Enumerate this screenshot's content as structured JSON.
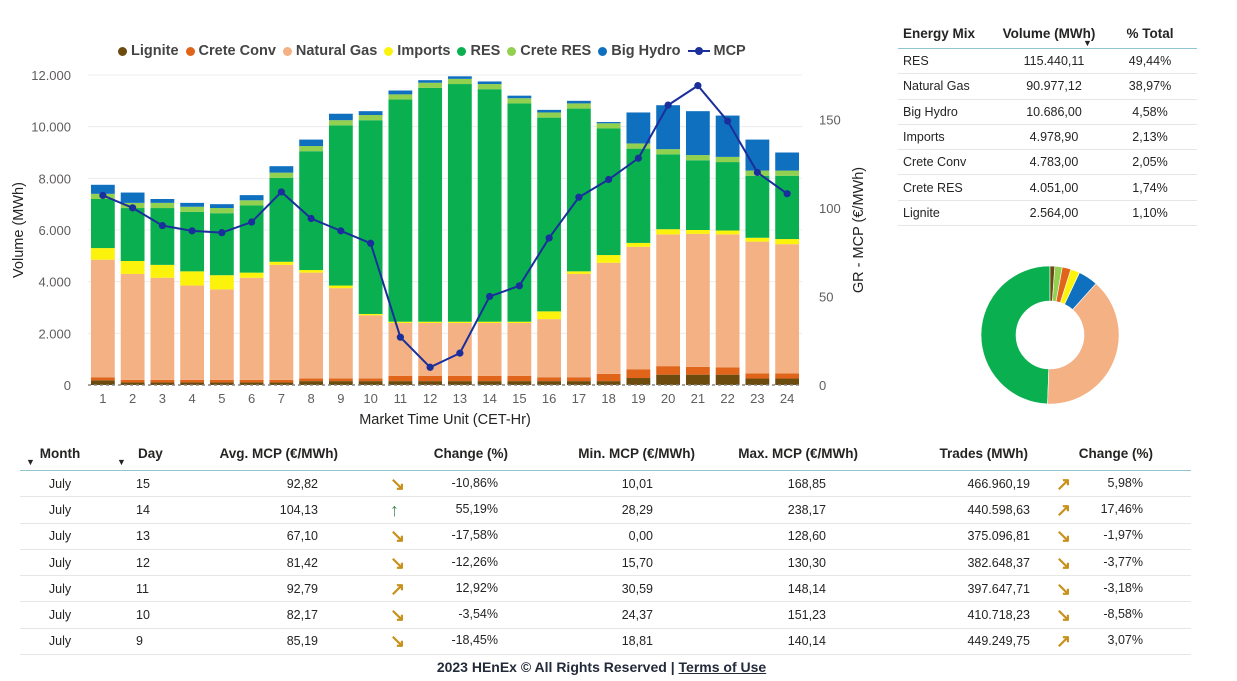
{
  "chart_data": {
    "type": "bar",
    "stacked": true,
    "xlabel": "Market Time Unit (CET-Hr)",
    "ylabel": "Volume (MWh)",
    "y2label": "GR - MCP (€/MWh)",
    "ylim": [
      0,
      12000
    ],
    "y2lim": [
      0,
      175
    ],
    "ticks_left": [
      "0",
      "2.000",
      "4.000",
      "6.000",
      "8.000",
      "10.000",
      "12.000"
    ],
    "ticks_right": [
      "0",
      "50",
      "100",
      "150"
    ],
    "categories": [
      "1",
      "2",
      "3",
      "4",
      "5",
      "6",
      "7",
      "8",
      "9",
      "10",
      "11",
      "12",
      "13",
      "14",
      "15",
      "16",
      "17",
      "18",
      "19",
      "20",
      "21",
      "22",
      "23",
      "24"
    ],
    "series": [
      {
        "name": "Lignite",
        "color": "#6b4b0e",
        "values": [
          180,
          100,
          100,
          100,
          100,
          100,
          100,
          150,
          150,
          150,
          150,
          150,
          150,
          150,
          150,
          150,
          150,
          150,
          270,
          400,
          400,
          400,
          250,
          250
        ]
      },
      {
        "name": "Crete Conv",
        "color": "#e0641a",
        "values": [
          120,
          100,
          100,
          100,
          100,
          100,
          100,
          100,
          100,
          100,
          200,
          200,
          200,
          200,
          200,
          150,
          150,
          280,
          330,
          330,
          300,
          280,
          200,
          200
        ]
      },
      {
        "name": "Natural Gas",
        "color": "#f4b184",
        "values": [
          4550,
          4100,
          3950,
          3650,
          3500,
          3950,
          4450,
          4100,
          3500,
          2450,
          2050,
          2050,
          2050,
          2050,
          2050,
          2250,
          4000,
          4300,
          4750,
          5100,
          5150,
          5150,
          5100,
          5000
        ]
      },
      {
        "name": "Imports",
        "color": "#fcf30c",
        "values": [
          450,
          500,
          500,
          550,
          550,
          200,
          120,
          100,
          100,
          50,
          50,
          50,
          50,
          50,
          50,
          300,
          100,
          300,
          150,
          200,
          150,
          150,
          150,
          200
        ]
      },
      {
        "name": "RES",
        "color": "#0ab050",
        "values": [
          1900,
          2050,
          2200,
          2300,
          2400,
          2600,
          3250,
          4600,
          6200,
          7500,
          8600,
          9050,
          9200,
          9000,
          8450,
          7500,
          6300,
          4900,
          3650,
          2900,
          2700,
          2650,
          2400,
          2450
        ]
      },
      {
        "name": "Crete RES",
        "color": "#92d050",
        "values": [
          200,
          200,
          200,
          200,
          200,
          200,
          200,
          200,
          200,
          200,
          200,
          200,
          200,
          200,
          200,
          200,
          200,
          200,
          200,
          200,
          200,
          200,
          200,
          200
        ]
      },
      {
        "name": "Big Hydro",
        "color": "#1070c0",
        "values": [
          350,
          400,
          150,
          150,
          150,
          200,
          250,
          250,
          250,
          150,
          150,
          100,
          100,
          100,
          100,
          100,
          100,
          50,
          1200,
          1700,
          1700,
          1600,
          1200,
          700
        ]
      }
    ],
    "line_series": {
      "name": "MCP",
      "color": "#1a2f9c",
      "values": [
        107,
        100,
        90,
        87,
        86,
        92,
        109,
        94,
        87,
        80,
        27,
        10,
        18,
        50,
        56,
        83,
        106,
        116,
        128,
        158,
        169,
        149,
        120,
        108
      ]
    }
  },
  "energy_mix": {
    "headers": [
      "Energy Mix",
      "Volume (MWh)",
      "% Total"
    ],
    "rows": [
      {
        "name": "RES",
        "volume": "115.440,11",
        "pct": "49,44%"
      },
      {
        "name": "Natural Gas",
        "volume": "90.977,12",
        "pct": "38,97%"
      },
      {
        "name": "Big Hydro",
        "volume": "10.686,00",
        "pct": "4,58%"
      },
      {
        "name": "Imports",
        "volume": "4.978,90",
        "pct": "2,13%"
      },
      {
        "name": "Crete Conv",
        "volume": "4.783,00",
        "pct": "2,05%"
      },
      {
        "name": "Crete RES",
        "volume": "4.051,00",
        "pct": "1,74%"
      },
      {
        "name": "Lignite",
        "volume": "2.564,00",
        "pct": "1,10%"
      }
    ]
  },
  "donut": {
    "slices": [
      {
        "name": "RES",
        "value": 49.44,
        "color": "#0ab050"
      },
      {
        "name": "Natural Gas",
        "value": 38.97,
        "color": "#f4b184"
      },
      {
        "name": "Big Hydro",
        "value": 4.58,
        "color": "#1070c0"
      },
      {
        "name": "Imports",
        "value": 2.13,
        "color": "#fcf30c"
      },
      {
        "name": "Crete Conv",
        "value": 2.05,
        "color": "#e0641a"
      },
      {
        "name": "Crete RES",
        "value": 1.74,
        "color": "#92d050"
      },
      {
        "name": "Lignite",
        "value": 1.1,
        "color": "#6b4b0e"
      }
    ]
  },
  "market": {
    "headers": [
      "Month",
      "Day",
      "Avg. MCP (€/MWh)",
      "Change (%)",
      "Min. MCP (€/MWh)",
      "Max. MCP (€/MWh)",
      "Trades (MWh)",
      "Change (%)"
    ],
    "rows": [
      {
        "month": "July",
        "day": "15",
        "avg": "92,82",
        "avg_dir": "down",
        "change": "-10,86%",
        "min": "10,01",
        "max": "168,85",
        "trades": "466.960,19",
        "trades_dir": "up",
        "trades_change": "5,98%"
      },
      {
        "month": "July",
        "day": "14",
        "avg": "104,13",
        "avg_dir": "strong-up",
        "change": "55,19%",
        "min": "28,29",
        "max": "238,17",
        "trades": "440.598,63",
        "trades_dir": "up",
        "trades_change": "17,46%"
      },
      {
        "month": "July",
        "day": "13",
        "avg": "67,10",
        "avg_dir": "down",
        "change": "-17,58%",
        "min": "0,00",
        "max": "128,60",
        "trades": "375.096,81",
        "trades_dir": "down",
        "trades_change": "-1,97%"
      },
      {
        "month": "July",
        "day": "12",
        "avg": "81,42",
        "avg_dir": "down",
        "change": "-12,26%",
        "min": "15,70",
        "max": "130,30",
        "trades": "382.648,37",
        "trades_dir": "down",
        "trades_change": "-3,77%"
      },
      {
        "month": "July",
        "day": "11",
        "avg": "92,79",
        "avg_dir": "up",
        "change": "12,92%",
        "min": "30,59",
        "max": "148,14",
        "trades": "397.647,71",
        "trades_dir": "down",
        "trades_change": "-3,18%"
      },
      {
        "month": "July",
        "day": "10",
        "avg": "82,17",
        "avg_dir": "down",
        "change": "-3,54%",
        "min": "24,37",
        "max": "151,23",
        "trades": "410.718,23",
        "trades_dir": "down",
        "trades_change": "-8,58%"
      },
      {
        "month": "July",
        "day": "9",
        "avg": "85,19",
        "avg_dir": "down",
        "change": "-18,45%",
        "min": "18,81",
        "max": "140,14",
        "trades": "449.249,75",
        "trades_dir": "up",
        "trades_change": "3,07%"
      }
    ]
  },
  "footer": {
    "text": "2023 HEnEx © All Rights Reserved | ",
    "link": "Terms of Use"
  },
  "icons": {
    "sort_icon": "caret-down-icon",
    "up_icon": "arrow-up-right-icon",
    "down_icon": "arrow-down-right-icon",
    "strong_up_icon": "arrow-up-icon"
  },
  "colors": {
    "arrow_gold": "#c8911c",
    "arrow_green": "#3f8a4f",
    "header_rule": "#8fc6cf"
  }
}
